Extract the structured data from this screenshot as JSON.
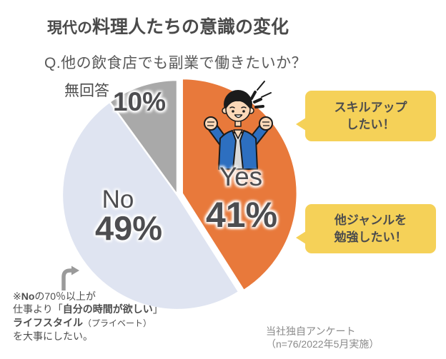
{
  "title": {
    "prefix": "現代の",
    "main": "料理人たちの意識の変化"
  },
  "question": "Q.他の飲食店でも副業で働きたいか？",
  "chart_data": {
    "type": "pie",
    "title": "Q.他の飲食店でも副業で働きたいか？",
    "categories": [
      "Yes",
      "No",
      "無回答"
    ],
    "values": [
      41,
      49,
      10
    ],
    "unit": "%",
    "colors": [
      "#E8793B",
      "#DFE4F1",
      "#A9A9A9"
    ],
    "start_angle_deg": 0,
    "direction": "clockwise",
    "exploded": "Yes",
    "legend_position": "labels-on-slices",
    "sample_note": "n=76/2022年5月実施"
  },
  "pie_labels": {
    "yes_name": "Yes",
    "yes_pct": "41%",
    "no_name": "No",
    "no_pct": "49%",
    "na_name": "無回答",
    "na_pct": "10%"
  },
  "bubbles": [
    {
      "line1": "スキルアップ",
      "line2": "したい！"
    },
    {
      "line1": "他ジャンルを",
      "line2": "勉強したい！"
    }
  ],
  "footnote": {
    "l1_prefix": "※",
    "l1_bold": "No",
    "l1_rest": "の70％以上が",
    "l2_pre": "仕事より「",
    "l2_bold": "自分の時間が欲しい",
    "l2_post": "」",
    "l3_bold": "ライフスタイル",
    "l3_small": "（プライベート）",
    "l4": "を大事にしたい。"
  },
  "source": {
    "line1": "当社独自アンケート",
    "line2": "（n=76/2022年5月実施）"
  },
  "colors": {
    "accent_orange": "#E8793B",
    "slice_no_blue": "#DFE4F1",
    "slice_na_gray": "#A9A9A9",
    "bubble_yellow": "#F5D158",
    "text_dark": "#4A4A4A",
    "arrow_gray": "#9A9A9A"
  }
}
